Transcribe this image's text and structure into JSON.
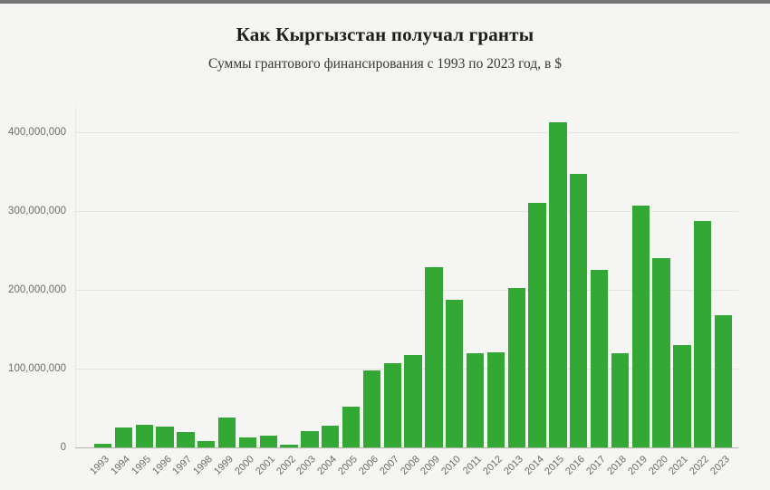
{
  "page": {
    "background_color": "#f5f5f3",
    "topbar_color": "#757575"
  },
  "chart_data": {
    "type": "bar",
    "title": "Как Кыргызстан получал гранты",
    "subtitle": "Суммы грантового финансирования с 1993 по 2023 год, в $",
    "categories": [
      1993,
      1994,
      1995,
      1996,
      1997,
      1998,
      1999,
      2000,
      2001,
      2002,
      2003,
      2004,
      2005,
      2006,
      2007,
      2008,
      2009,
      2010,
      2011,
      2012,
      2013,
      2014,
      2015,
      2016,
      2017,
      2018,
      2019,
      2020,
      2021,
      2022,
      2023
    ],
    "values": [
      5000000,
      25000000,
      29000000,
      26000000,
      20000000,
      8000000,
      38000000,
      13000000,
      15000000,
      3000000,
      21000000,
      28000000,
      52000000,
      98000000,
      107000000,
      117000000,
      229000000,
      187000000,
      119000000,
      121000000,
      202000000,
      310000000,
      413000000,
      347000000,
      225000000,
      120000000,
      307000000,
      240000000,
      130000000,
      287000000,
      168000000
    ],
    "xlabel": "",
    "ylabel": "",
    "ylim": [
      0,
      430000000
    ],
    "yticks": [
      0,
      100000000,
      200000000,
      300000000,
      400000000
    ],
    "ytick_labels": [
      "0",
      "100,000,000",
      "200,000,000",
      "300,000,000",
      "400,000,000"
    ],
    "grid": true,
    "legend": false,
    "bar_color": "#34a834"
  }
}
